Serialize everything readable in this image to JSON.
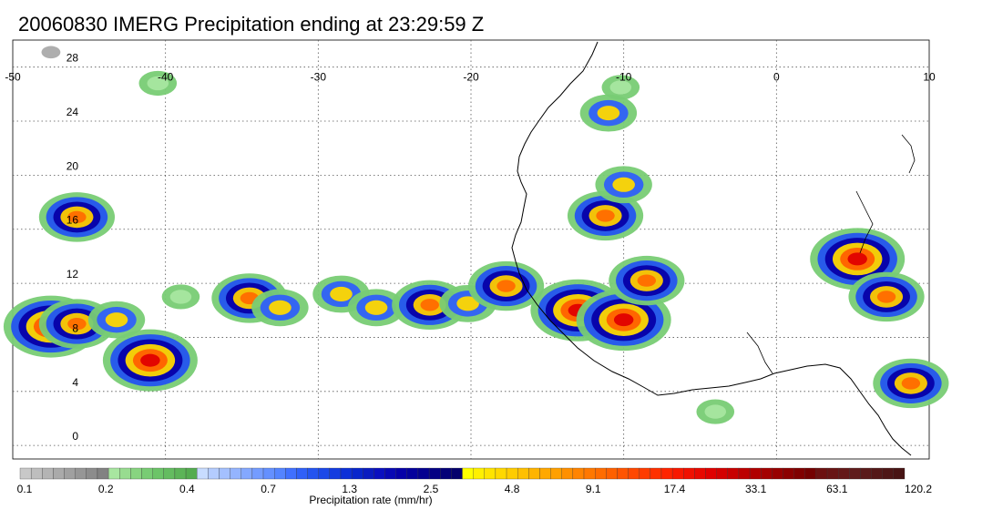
{
  "title": "20060830 IMERG Precipitation ending at 23:29:59 Z",
  "map": {
    "lon_range": [
      -50,
      10
    ],
    "lat_range": [
      -1,
      30
    ],
    "lon_ticks": [
      "-50",
      "-40",
      "-30",
      "-20",
      "-10",
      "0",
      "10"
    ],
    "lat_ticks": [
      "0",
      "4",
      "8",
      "12",
      "16",
      "20",
      "24",
      "28"
    ],
    "grid_style": "dotted"
  },
  "colorbar": {
    "label": "Precipitation rate (mm/hr)",
    "tick_labels": [
      "0.1",
      "0.2",
      "0.4",
      "0.7",
      "1.3",
      "2.5",
      "4.8",
      "9.1",
      "17.4",
      "33.1",
      "63.1",
      "120.2"
    ],
    "groups": [
      {
        "name": "gray",
        "colors": [
          "#c8c8c8",
          "#bebebe",
          "#b4b4b4",
          "#aaaaaa",
          "#a0a0a0",
          "#969696",
          "#8c8c8c",
          "#828282"
        ]
      },
      {
        "name": "green",
        "colors": [
          "#a8e6a0",
          "#98dc90",
          "#88d480",
          "#78cc74",
          "#6cc468",
          "#64bc60",
          "#5cb458",
          "#54ac50"
        ]
      },
      {
        "name": "lightblue",
        "colors": [
          "#c8dcff",
          "#b4ccff",
          "#a4c0ff",
          "#94b4ff",
          "#84a8ff",
          "#749cff",
          "#6490ff",
          "#5484ff"
        ]
      },
      {
        "name": "blue",
        "colors": [
          "#4070ff",
          "#3060f8",
          "#2454f0",
          "#1c48e8",
          "#143ce0",
          "#0c30d8",
          "#0826cc",
          "#0a1cc0"
        ]
      },
      {
        "name": "darkblue",
        "colors": [
          "#0a10c0",
          "#0808b4",
          "#0600a8",
          "#04009c",
          "#040090",
          "#040084",
          "#040078",
          "#04006c"
        ]
      },
      {
        "name": "yellow",
        "colors": [
          "#ffff00",
          "#fff000",
          "#ffe400",
          "#ffd800",
          "#ffcc00",
          "#ffc000",
          "#ffb400",
          "#ffa800"
        ]
      },
      {
        "name": "orange",
        "colors": [
          "#ffa000",
          "#ff9000",
          "#ff8400",
          "#ff7800",
          "#ff6c00",
          "#ff6000",
          "#ff5400",
          "#ff4800"
        ]
      },
      {
        "name": "red",
        "colors": [
          "#ff3c00",
          "#ff3000",
          "#ff2400",
          "#f81800",
          "#f01000",
          "#e80800",
          "#e00000",
          "#d40000"
        ]
      },
      {
        "name": "darkred",
        "colors": [
          "#c80000",
          "#bc0000",
          "#b00000",
          "#a40000",
          "#980000",
          "#8c0000",
          "#800000",
          "#740000"
        ]
      },
      {
        "name": "brown",
        "colors": [
          "#6c1010",
          "#681414",
          "#641818",
          "#601c1c",
          "#5a1a1a",
          "#541818",
          "#4e1616",
          "#481414"
        ]
      }
    ]
  },
  "precip_cells": [
    {
      "lon": -47.5,
      "lat": 8.8,
      "level": 4
    },
    {
      "lon": -45.8,
      "lat": 9.0,
      "level": 3
    },
    {
      "lon": -43.2,
      "lat": 9.3,
      "level": 2
    },
    {
      "lon": -41.0,
      "lat": 6.3,
      "level": 4
    },
    {
      "lon": -39.0,
      "lat": 11.0,
      "level": 1
    },
    {
      "lon": -34.5,
      "lat": 10.9,
      "level": 3
    },
    {
      "lon": -32.5,
      "lat": 10.2,
      "level": 2
    },
    {
      "lon": -28.5,
      "lat": 11.2,
      "level": 2
    },
    {
      "lon": -26.2,
      "lat": 10.2,
      "level": 2
    },
    {
      "lon": -22.7,
      "lat": 10.4,
      "level": 3
    },
    {
      "lon": -20.2,
      "lat": 10.5,
      "level": 2
    },
    {
      "lon": -17.7,
      "lat": 11.8,
      "level": 3
    },
    {
      "lon": -13.0,
      "lat": 10.0,
      "level": 4
    },
    {
      "lon": -10.0,
      "lat": 9.3,
      "level": 4
    },
    {
      "lon": -8.5,
      "lat": 12.2,
      "level": 3
    },
    {
      "lon": -11.2,
      "lat": 17.0,
      "level": 3
    },
    {
      "lon": -10.0,
      "lat": 19.3,
      "level": 2
    },
    {
      "lon": -11.0,
      "lat": 24.6,
      "level": 2
    },
    {
      "lon": -45.8,
      "lat": 16.9,
      "level": 3
    },
    {
      "lon": 5.3,
      "lat": 13.8,
      "level": 4
    },
    {
      "lon": 7.2,
      "lat": 11.0,
      "level": 3
    },
    {
      "lon": 8.8,
      "lat": 4.6,
      "level": 3
    },
    {
      "lon": -40.5,
      "lat": 26.8,
      "level": 1
    },
    {
      "lon": -47.5,
      "lat": 29.1,
      "level": 0
    },
    {
      "lon": -10.2,
      "lat": 26.5,
      "level": 1
    },
    {
      "lon": -4.0,
      "lat": 2.5,
      "level": 1
    }
  ]
}
